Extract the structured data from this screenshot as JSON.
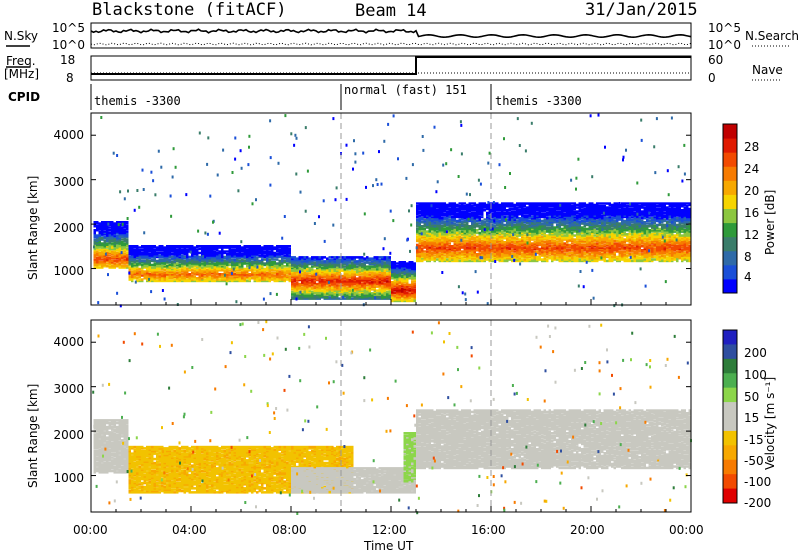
{
  "header": {
    "station": "Blackstone (fitACF)",
    "beam": "Beam 14",
    "date": "31/Jan/2015"
  },
  "top_panels": {
    "nsky_label": "N.Sky",
    "nsky_ticks": [
      "10^5",
      "10^0"
    ],
    "nsearch_label": "N.Search",
    "nsearch_ticks": [
      "10^5",
      "10^0"
    ],
    "freq_label": "Freq.",
    "freq_unit": "[MHz]",
    "freq_ticks": [
      "18",
      "8"
    ],
    "nave_label": "Nave",
    "nave_ticks": [
      "60",
      "0"
    ],
    "cpid_label": "CPID",
    "cpid_segments": [
      {
        "text": "themis -3300",
        "start_h": 0,
        "end_h": 10
      },
      {
        "text": "normal (fast) 151",
        "start_h": 10,
        "end_h": 16
      },
      {
        "text": "themis -3300",
        "start_h": 16,
        "end_h": 24
      }
    ]
  },
  "axes": {
    "ylabel": "Slant Range [km]",
    "xlabel": "Time UT",
    "x_ticks": [
      "00:00",
      "04:00",
      "08:00",
      "12:00",
      "16:00",
      "20:00",
      "00:00"
    ],
    "y_ticks": [
      "1000",
      "2000",
      "3000",
      "4000"
    ]
  },
  "colorbars": {
    "power": {
      "label": "Power [dB]",
      "ticks": [
        "28",
        "24",
        "20",
        "16",
        "12",
        "8",
        "4"
      ],
      "colors": [
        "#0000ff",
        "#1a4fd8",
        "#2e6aa8",
        "#3a7d6a",
        "#2f9a3a",
        "#8cc63f",
        "#f6d400",
        "#f7a800",
        "#f77b00",
        "#f24a00",
        "#e01a00",
        "#c00000"
      ]
    },
    "velocity": {
      "label": "Velocity [m s⁻¹]",
      "ticks": [
        "200",
        "100",
        "50",
        "15",
        "-15",
        "-50",
        "-100",
        "-200"
      ],
      "colors": [
        "#2020c0",
        "#2f4fa0",
        "#2e7d3a",
        "#4caf50",
        "#8cd64a",
        "#c8c8c0",
        "#c8c8c0",
        "#f2c200",
        "#f7a800",
        "#f77b00",
        "#f24a00",
        "#e00000"
      ]
    }
  },
  "chart_data": [
    {
      "type": "heatmap",
      "title": "Power",
      "xlabel": "Time UT",
      "ylabel": "Slant Range [km]",
      "xlim": [
        0,
        24
      ],
      "ylim": [
        180,
        4500
      ],
      "colorbar": "Power [dB]",
      "clim": [
        0,
        32
      ],
      "bands": [
        {
          "t0": 0.1,
          "t1": 1.5,
          "r0": 1050,
          "r1": 2100,
          "peak_r": 1250,
          "peak_db": 26
        },
        {
          "t0": 1.5,
          "t1": 8.0,
          "r0": 750,
          "r1": 1550,
          "peak_r": 900,
          "peak_db": 24
        },
        {
          "t0": 8.0,
          "t1": 12.0,
          "r0": 350,
          "r1": 1300,
          "peak_r": 750,
          "peak_db": 28
        },
        {
          "t0": 12.0,
          "t1": 13.0,
          "r0": 300,
          "r1": 1200,
          "peak_r": 550,
          "peak_db": 30
        },
        {
          "t0": 13.0,
          "t1": 24.0,
          "r0": 1200,
          "r1": 2500,
          "peak_r": 1500,
          "peak_db": 26
        }
      ]
    },
    {
      "type": "heatmap",
      "title": "Velocity",
      "xlabel": "Time UT",
      "ylabel": "Slant Range [km]",
      "xlim": [
        0,
        24
      ],
      "ylim": [
        180,
        4500
      ],
      "colorbar": "Velocity [m s-1]",
      "clim": [
        -200,
        200
      ],
      "bands": [
        {
          "t0": 0.1,
          "t1": 1.5,
          "r0": 1100,
          "r1": 2300,
          "vel": 0
        },
        {
          "t0": 1.5,
          "t1": 10.5,
          "r0": 650,
          "r1": 1700,
          "vel": -60
        },
        {
          "t0": 8.0,
          "t1": 13.0,
          "r0": 650,
          "r1": 1200,
          "vel": 0
        },
        {
          "t0": 12.5,
          "t1": 13.0,
          "r0": 900,
          "r1": 2000,
          "vel": 40
        },
        {
          "t0": 13.0,
          "t1": 24.0,
          "r0": 1200,
          "r1": 2500,
          "vel": 0
        }
      ]
    }
  ]
}
